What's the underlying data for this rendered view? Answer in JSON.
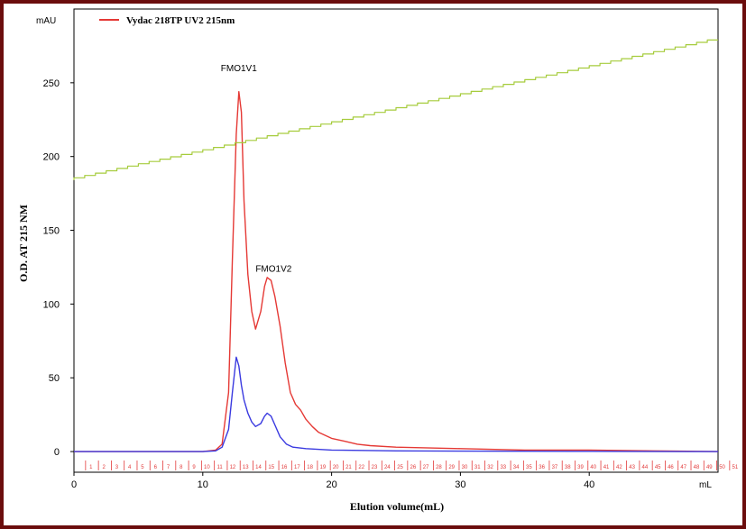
{
  "chart_data": {
    "type": "line",
    "y_unit": "mAU",
    "x_unit": "mL",
    "ylabel": "O.D. AT 215 NM",
    "xlabel": "Elution volume(mL)",
    "xlim": [
      0,
      50
    ],
    "ylim": [
      -14,
      300
    ],
    "x_ticks": [
      "0",
      "10",
      "20",
      "30",
      "40"
    ],
    "x_tick_values": [
      0,
      10,
      20,
      30,
      40
    ],
    "y_ticks": [
      "0",
      "50",
      "100",
      "150",
      "200",
      "250"
    ],
    "y_tick_values": [
      0,
      50,
      100,
      150,
      200,
      250
    ],
    "fraction_range": [
      1,
      51
    ],
    "fraction_start_ml": 0.9,
    "fraction_step_ml": 1.0,
    "legend": [
      {
        "name": "Vydac 218TP UV2 215nm",
        "color": "#e53935"
      }
    ],
    "legend_position": "top-left",
    "annotations": [
      {
        "text": "FMO1V1",
        "x": 12.8,
        "y": 258
      },
      {
        "text": "FMO1V2",
        "x": 15.5,
        "y": 122
      }
    ],
    "series": [
      {
        "color": "#e53935",
        "x": [
          0,
          10,
          11,
          11.5,
          12,
          12.3,
          12.6,
          12.8,
          13,
          13.2,
          13.5,
          13.8,
          14.1,
          14.5,
          14.8,
          15,
          15.3,
          15.6,
          16,
          16.4,
          16.8,
          17.2,
          17.6,
          18,
          18.5,
          19,
          20,
          21,
          22,
          23,
          25,
          30,
          35,
          40,
          45,
          50
        ],
        "y": [
          0,
          0,
          1,
          5,
          40,
          130,
          215,
          244,
          230,
          170,
          120,
          95,
          83,
          95,
          112,
          118,
          116,
          105,
          85,
          60,
          40,
          32,
          28,
          22,
          17,
          13,
          9,
          7,
          5,
          4,
          3,
          2,
          1,
          1,
          0.5,
          0
        ]
      },
      {
        "color": "#3a3ae0",
        "x": [
          0,
          10,
          11,
          11.5,
          12,
          12.3,
          12.6,
          12.8,
          13,
          13.2,
          13.5,
          13.8,
          14.1,
          14.5,
          14.8,
          15,
          15.3,
          15.6,
          16,
          16.5,
          17,
          18,
          20,
          25,
          30,
          40,
          50
        ],
        "y": [
          0,
          0,
          0.5,
          3,
          15,
          40,
          64,
          58,
          45,
          35,
          26,
          20,
          17,
          19,
          24,
          26,
          24,
          18,
          10,
          5,
          3,
          2,
          1,
          0.5,
          0.3,
          0.2,
          0
        ]
      },
      {
        "color": "#a6cc3c",
        "step": true,
        "x": [
          0,
          50
        ],
        "y": [
          184,
          279
        ]
      }
    ]
  }
}
